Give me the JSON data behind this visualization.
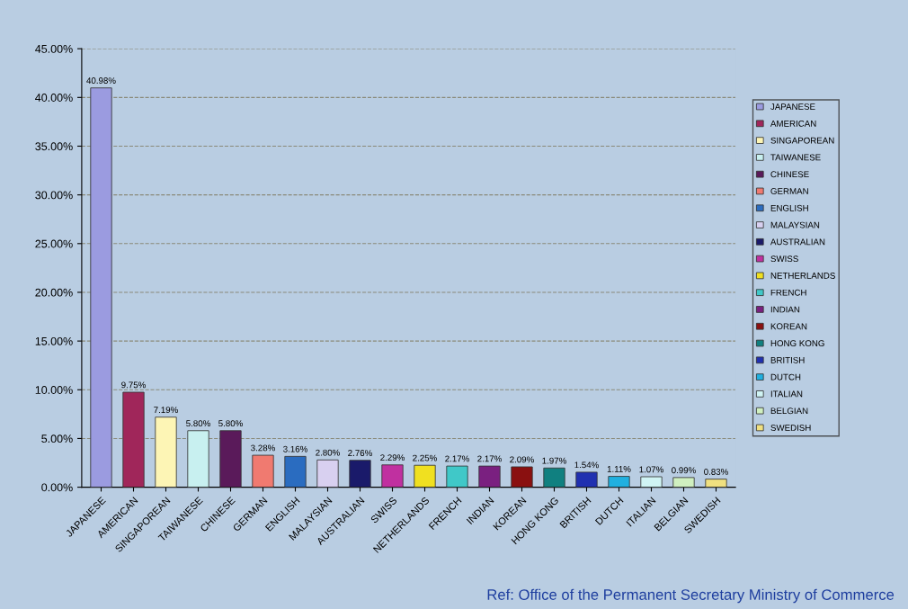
{
  "chart_data": {
    "type": "bar",
    "categories": [
      "JAPANESE",
      "AMERICAN",
      "SINGAPOREAN",
      "TAIWANESE",
      "CHINESE",
      "GERMAN",
      "ENGLISH",
      "MALAYSIAN",
      "AUSTRALIAN",
      "SWISS",
      "NETHERLANDS",
      "FRENCH",
      "INDIAN",
      "KOREAN",
      "HONG KONG",
      "BRITISH",
      "DUTCH",
      "ITALIAN",
      "BELGIAN",
      "SWEDISH"
    ],
    "series": [
      {
        "name": "JAPANESE",
        "color": "#9b9be0",
        "values": [
          40.98,
          null,
          null,
          null,
          null,
          null,
          null,
          null,
          null,
          null,
          null,
          null,
          null,
          null,
          null,
          null,
          null,
          null,
          null,
          null
        ],
        "value_labels": [
          "40.98%",
          null,
          null,
          null,
          null,
          null,
          null,
          null,
          null,
          null,
          null,
          null,
          null,
          null,
          null,
          null,
          null,
          null,
          null,
          null
        ]
      },
      {
        "name": "AMERICAN",
        "color": "#a0265a",
        "values": [
          null,
          9.75,
          null,
          null,
          null,
          null,
          null,
          null,
          null,
          null,
          null,
          null,
          null,
          null,
          null,
          null,
          null,
          null,
          null,
          null
        ],
        "value_labels": [
          null,
          "9.75%",
          null,
          null,
          null,
          null,
          null,
          null,
          null,
          null,
          null,
          null,
          null,
          null,
          null,
          null,
          null,
          null,
          null,
          null
        ]
      },
      {
        "name": "SINGAPOREAN",
        "color": "#fdf5b5",
        "values": [
          null,
          null,
          7.19,
          null,
          null,
          null,
          null,
          null,
          null,
          null,
          null,
          null,
          null,
          null,
          null,
          null,
          null,
          null,
          null,
          null
        ],
        "value_labels": [
          null,
          null,
          "7.19%",
          null,
          null,
          null,
          null,
          null,
          null,
          null,
          null,
          null,
          null,
          null,
          null,
          null,
          null,
          null,
          null,
          null
        ]
      },
      {
        "name": "TAIWANESE",
        "color": "#c8f0f0",
        "values": [
          null,
          null,
          null,
          5.8,
          null,
          null,
          null,
          null,
          null,
          null,
          null,
          null,
          null,
          null,
          null,
          null,
          null,
          null,
          null,
          null
        ],
        "value_labels": [
          null,
          null,
          null,
          "5.80%",
          null,
          null,
          null,
          null,
          null,
          null,
          null,
          null,
          null,
          null,
          null,
          null,
          null,
          null,
          null,
          null
        ]
      },
      {
        "name": "CHINESE",
        "color": "#5a1a5a",
        "values": [
          null,
          null,
          null,
          null,
          5.8,
          null,
          null,
          null,
          null,
          null,
          null,
          null,
          null,
          null,
          null,
          null,
          null,
          null,
          null,
          null
        ],
        "value_labels": [
          null,
          null,
          null,
          null,
          "5.80%",
          null,
          null,
          null,
          null,
          null,
          null,
          null,
          null,
          null,
          null,
          null,
          null,
          null,
          null,
          null
        ]
      },
      {
        "name": "GERMAN",
        "color": "#f07a70",
        "values": [
          null,
          null,
          null,
          null,
          null,
          3.28,
          null,
          null,
          null,
          null,
          null,
          null,
          null,
          null,
          null,
          null,
          null,
          null,
          null,
          null
        ],
        "value_labels": [
          null,
          null,
          null,
          null,
          null,
          "3.28%",
          null,
          null,
          null,
          null,
          null,
          null,
          null,
          null,
          null,
          null,
          null,
          null,
          null,
          null
        ]
      },
      {
        "name": "ENGLISH",
        "color": "#2a6cc0",
        "values": [
          null,
          null,
          null,
          null,
          null,
          null,
          3.16,
          null,
          null,
          null,
          null,
          null,
          null,
          null,
          null,
          null,
          null,
          null,
          null,
          null
        ],
        "value_labels": [
          null,
          null,
          null,
          null,
          null,
          null,
          "3.16%",
          null,
          null,
          null,
          null,
          null,
          null,
          null,
          null,
          null,
          null,
          null,
          null,
          null
        ]
      },
      {
        "name": "MALAYSIAN",
        "color": "#d8d0f0",
        "values": [
          null,
          null,
          null,
          null,
          null,
          null,
          null,
          2.8,
          null,
          null,
          null,
          null,
          null,
          null,
          null,
          null,
          null,
          null,
          null,
          null
        ],
        "value_labels": [
          null,
          null,
          null,
          null,
          null,
          null,
          null,
          "2.80%",
          null,
          null,
          null,
          null,
          null,
          null,
          null,
          null,
          null,
          null,
          null,
          null
        ]
      },
      {
        "name": "AUSTRALIAN",
        "color": "#1a1a6a",
        "values": [
          null,
          null,
          null,
          null,
          null,
          null,
          null,
          null,
          2.76,
          null,
          null,
          null,
          null,
          null,
          null,
          null,
          null,
          null,
          null,
          null
        ],
        "value_labels": [
          null,
          null,
          null,
          null,
          null,
          null,
          null,
          null,
          "2.76%",
          null,
          null,
          null,
          null,
          null,
          null,
          null,
          null,
          null,
          null,
          null
        ]
      },
      {
        "name": "SWISS",
        "color": "#c030a0",
        "values": [
          null,
          null,
          null,
          null,
          null,
          null,
          null,
          null,
          null,
          2.29,
          null,
          null,
          null,
          null,
          null,
          null,
          null,
          null,
          null,
          null
        ],
        "value_labels": [
          null,
          null,
          null,
          null,
          null,
          null,
          null,
          null,
          null,
          "2.29%",
          null,
          null,
          null,
          null,
          null,
          null,
          null,
          null,
          null,
          null
        ]
      },
      {
        "name": "NETHERLANDS",
        "color": "#f0e020",
        "values": [
          null,
          null,
          null,
          null,
          null,
          null,
          null,
          null,
          null,
          null,
          2.25,
          null,
          null,
          null,
          null,
          null,
          null,
          null,
          null,
          null
        ],
        "value_labels": [
          null,
          null,
          null,
          null,
          null,
          null,
          null,
          null,
          null,
          null,
          "2.25%",
          null,
          null,
          null,
          null,
          null,
          null,
          null,
          null,
          null
        ]
      },
      {
        "name": "FRENCH",
        "color": "#40c8c8",
        "values": [
          null,
          null,
          null,
          null,
          null,
          null,
          null,
          null,
          null,
          null,
          null,
          2.17,
          null,
          null,
          null,
          null,
          null,
          null,
          null,
          null
        ],
        "value_labels": [
          null,
          null,
          null,
          null,
          null,
          null,
          null,
          null,
          null,
          null,
          null,
          "2.17%",
          null,
          null,
          null,
          null,
          null,
          null,
          null,
          null
        ]
      },
      {
        "name": "INDIAN",
        "color": "#7a2080",
        "values": [
          null,
          null,
          null,
          null,
          null,
          null,
          null,
          null,
          null,
          null,
          null,
          null,
          2.17,
          null,
          null,
          null,
          null,
          null,
          null,
          null
        ],
        "value_labels": [
          null,
          null,
          null,
          null,
          null,
          null,
          null,
          null,
          null,
          null,
          null,
          null,
          "2.17%",
          null,
          null,
          null,
          null,
          null,
          null,
          null
        ]
      },
      {
        "name": "KOREAN",
        "color": "#8a1010",
        "values": [
          null,
          null,
          null,
          null,
          null,
          null,
          null,
          null,
          null,
          null,
          null,
          null,
          null,
          2.09,
          null,
          null,
          null,
          null,
          null,
          null
        ],
        "value_labels": [
          null,
          null,
          null,
          null,
          null,
          null,
          null,
          null,
          null,
          null,
          null,
          null,
          null,
          "2.09%",
          null,
          null,
          null,
          null,
          null,
          null
        ]
      },
      {
        "name": "HONG KONG",
        "color": "#108080",
        "values": [
          null,
          null,
          null,
          null,
          null,
          null,
          null,
          null,
          null,
          null,
          null,
          null,
          null,
          null,
          1.97,
          null,
          null,
          null,
          null,
          null
        ],
        "value_labels": [
          null,
          null,
          null,
          null,
          null,
          null,
          null,
          null,
          null,
          null,
          null,
          null,
          null,
          null,
          "1.97%",
          null,
          null,
          null,
          null,
          null
        ]
      },
      {
        "name": "BRITISH",
        "color": "#2030b0",
        "values": [
          null,
          null,
          null,
          null,
          null,
          null,
          null,
          null,
          null,
          null,
          null,
          null,
          null,
          null,
          null,
          1.54,
          null,
          null,
          null,
          null
        ],
        "value_labels": [
          null,
          null,
          null,
          null,
          null,
          null,
          null,
          null,
          null,
          null,
          null,
          null,
          null,
          null,
          null,
          "1.54%",
          null,
          null,
          null,
          null
        ]
      },
      {
        "name": "DUTCH",
        "color": "#20b0e0",
        "values": [
          null,
          null,
          null,
          null,
          null,
          null,
          null,
          null,
          null,
          null,
          null,
          null,
          null,
          null,
          null,
          null,
          1.11,
          null,
          null,
          null
        ],
        "value_labels": [
          null,
          null,
          null,
          null,
          null,
          null,
          null,
          null,
          null,
          null,
          null,
          null,
          null,
          null,
          null,
          null,
          "1.11%",
          null,
          null,
          null
        ]
      },
      {
        "name": "ITALIAN",
        "color": "#d0f4f4",
        "values": [
          null,
          null,
          null,
          null,
          null,
          null,
          null,
          null,
          null,
          null,
          null,
          null,
          null,
          null,
          null,
          null,
          null,
          1.07,
          null,
          null
        ],
        "value_labels": [
          null,
          null,
          null,
          null,
          null,
          null,
          null,
          null,
          null,
          null,
          null,
          null,
          null,
          null,
          null,
          null,
          null,
          "1.07%",
          null,
          null
        ]
      },
      {
        "name": "BELGIAN",
        "color": "#d0f0c0",
        "values": [
          null,
          null,
          null,
          null,
          null,
          null,
          null,
          null,
          null,
          null,
          null,
          null,
          null,
          null,
          null,
          null,
          null,
          null,
          0.99,
          null
        ],
        "value_labels": [
          null,
          null,
          null,
          null,
          null,
          null,
          null,
          null,
          null,
          null,
          null,
          null,
          null,
          null,
          null,
          null,
          null,
          null,
          "0.99%",
          null
        ]
      },
      {
        "name": "SWEDISH",
        "color": "#f0e080",
        "values": [
          null,
          null,
          null,
          null,
          null,
          null,
          null,
          null,
          null,
          null,
          null,
          null,
          null,
          null,
          null,
          null,
          null,
          null,
          null,
          0.83
        ],
        "value_labels": [
          null,
          null,
          null,
          null,
          null,
          null,
          null,
          null,
          null,
          null,
          null,
          null,
          null,
          null,
          null,
          null,
          null,
          null,
          null,
          "0.83%"
        ]
      }
    ],
    "ylim": [
      0,
      45
    ],
    "yticks": [
      {
        "value": 0,
        "label": "0.00%"
      },
      {
        "value": 5,
        "label": "5.00%"
      },
      {
        "value": 10,
        "label": "10.00%"
      },
      {
        "value": 15,
        "label": "15.00%"
      },
      {
        "value": 20,
        "label": "20.00%"
      },
      {
        "value": 25,
        "label": "25.00%"
      },
      {
        "value": 30,
        "label": "30.00%"
      },
      {
        "value": 35,
        "label": "35.00%"
      },
      {
        "value": 40,
        "label": "40.00%"
      },
      {
        "value": 45,
        "label": "45.00%"
      }
    ],
    "grid": "y",
    "legend": "right",
    "annotations": [
      "Ref: Office of the Permanent Secretary Ministry of Commerce"
    ]
  }
}
